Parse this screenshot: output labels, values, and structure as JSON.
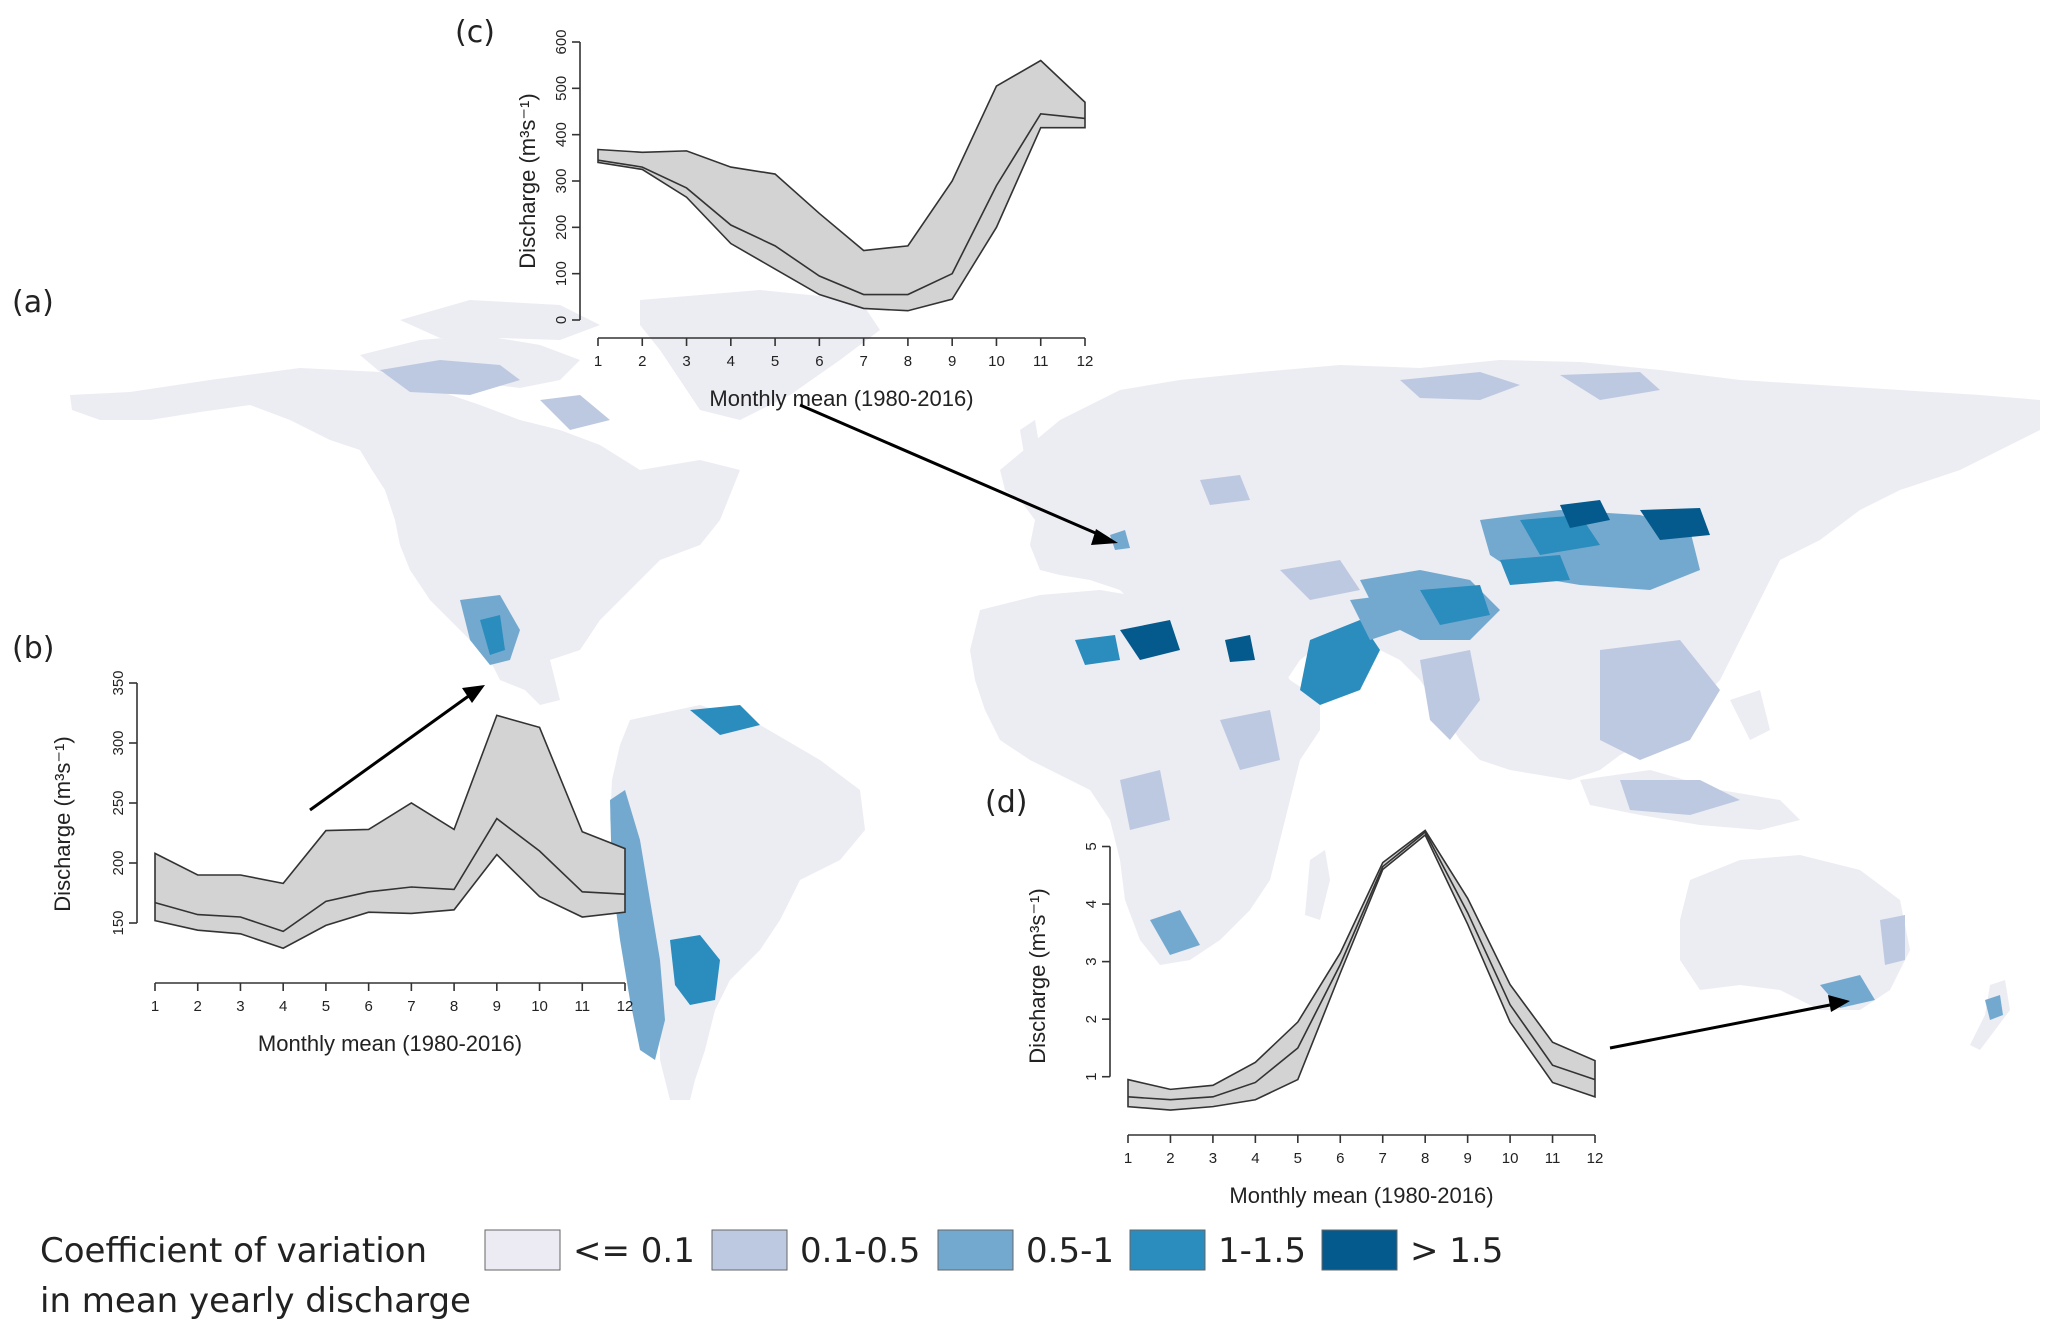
{
  "panels": {
    "a": "(a)",
    "b": "(b)",
    "c": "(c)",
    "d": "(d)"
  },
  "legend": {
    "title_line1": "Coefficient of variation",
    "title_line2": "in mean yearly discharge",
    "items": [
      {
        "label": "<= 0.1",
        "color": "#ecebf3"
      },
      {
        "label": "0.1-0.5",
        "color": "#bdc9e1"
      },
      {
        "label": "0.5-1",
        "color": "#74a9cf"
      },
      {
        "label": "1-1.5",
        "color": "#2b8cbe"
      },
      {
        "label": "> 1.5",
        "color": "#045a8d"
      }
    ]
  },
  "chart_data": [
    {
      "id": "b",
      "type": "area",
      "xlabel": "Monthly mean (1980-2016)",
      "ylabel": "Discharge (m³s⁻¹)",
      "x": [
        1,
        2,
        3,
        4,
        5,
        6,
        7,
        8,
        9,
        10,
        11,
        12
      ],
      "yticks": [
        150,
        200,
        250,
        300,
        350
      ],
      "ylim": [
        115,
        350
      ],
      "upper": [
        208,
        190,
        190,
        183,
        227,
        228,
        250,
        228,
        323,
        313,
        226,
        212
      ],
      "mean": [
        167,
        157,
        155,
        143,
        168,
        176,
        180,
        178,
        237,
        210,
        176,
        174
      ],
      "lower": [
        152,
        144,
        141,
        129,
        148,
        159,
        158,
        161,
        207,
        172,
        155,
        159
      ]
    },
    {
      "id": "c",
      "type": "area",
      "xlabel": "Monthly mean (1980-2016)",
      "ylabel": "Discharge (m³s⁻¹)",
      "x": [
        1,
        2,
        3,
        4,
        5,
        6,
        7,
        8,
        9,
        10,
        11,
        12
      ],
      "yticks": [
        0,
        100,
        200,
        300,
        400,
        500,
        600
      ],
      "ylim": [
        0,
        600
      ],
      "upper": [
        368,
        362,
        365,
        330,
        315,
        230,
        150,
        160,
        300,
        505,
        560,
        470
      ],
      "mean": [
        345,
        330,
        285,
        205,
        160,
        95,
        55,
        55,
        100,
        290,
        445,
        435
      ],
      "lower": [
        340,
        325,
        265,
        165,
        110,
        55,
        25,
        20,
        45,
        200,
        415,
        415
      ]
    },
    {
      "id": "d",
      "type": "area",
      "xlabel": "Monthly mean (1980-2016)",
      "ylabel": "Discharge (m³s⁻¹)",
      "x": [
        1,
        2,
        3,
        4,
        5,
        6,
        7,
        8,
        9,
        10,
        11,
        12
      ],
      "yticks": [
        1,
        2,
        3,
        4,
        5
      ],
      "ylim": [
        0.3,
        5.2
      ],
      "upper": [
        0.95,
        0.78,
        0.85,
        1.25,
        1.95,
        3.15,
        4.72,
        5.28,
        4.1,
        2.6,
        1.6,
        1.28
      ],
      "mean": [
        0.65,
        0.6,
        0.65,
        0.9,
        1.5,
        2.95,
        4.65,
        5.25,
        3.85,
        2.25,
        1.2,
        0.95
      ],
      "lower": [
        0.48,
        0.42,
        0.48,
        0.6,
        0.95,
        2.8,
        4.6,
        5.2,
        3.65,
        1.95,
        0.9,
        0.65
      ]
    }
  ]
}
